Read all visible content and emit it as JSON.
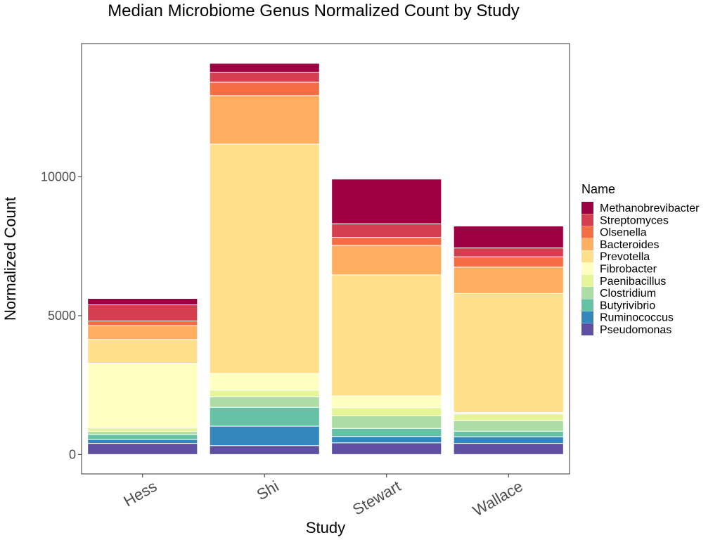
{
  "chart_data": {
    "type": "bar",
    "stacked": true,
    "title": "Median Microbiome Genus Normalized Count by Study",
    "xlabel": "Study",
    "ylabel": "Normalized Count",
    "categories": [
      "Hess",
      "Shi",
      "Stewart",
      "Wallace"
    ],
    "ylim": [
      -700,
      14800
    ],
    "yticks": [
      0,
      5000,
      10000
    ],
    "ytick_labels": [
      "0",
      "5000",
      "10000"
    ],
    "grid": false,
    "legend_title": "Name",
    "legend_position": "right",
    "series": [
      {
        "name": "Pseudomonas",
        "color": "#5E4FA2",
        "values": [
          400,
          320,
          420,
          400
        ]
      },
      {
        "name": "Ruminococcus",
        "color": "#3288BD",
        "values": [
          140,
          700,
          230,
          240
        ]
      },
      {
        "name": "Butyrivibrio",
        "color": "#66C2A5",
        "values": [
          180,
          680,
          290,
          200
        ]
      },
      {
        "name": "Clostridium",
        "color": "#ABDDA4",
        "values": [
          110,
          380,
          450,
          380
        ]
      },
      {
        "name": "Paenibacillus",
        "color": "#E6F598",
        "values": [
          140,
          240,
          300,
          240
        ]
      },
      {
        "name": "Fibrobacter",
        "color": "#FFFFBF",
        "values": [
          2320,
          600,
          420,
          60
        ]
      },
      {
        "name": "Prevotella",
        "color": "#FEE08B",
        "values": [
          850,
          8260,
          4360,
          4280
        ]
      },
      {
        "name": "Bacteroides",
        "color": "#FDAE61",
        "values": [
          500,
          1750,
          1060,
          950
        ]
      },
      {
        "name": "Olsenella",
        "color": "#F46D43",
        "values": [
          170,
          480,
          290,
          370
        ]
      },
      {
        "name": "Streptomyces",
        "color": "#D53E4F",
        "values": [
          580,
          350,
          490,
          320
        ]
      },
      {
        "name": "Methanobrevibacter",
        "color": "#9E0142",
        "values": [
          230,
          330,
          1610,
          790
        ]
      }
    ]
  }
}
